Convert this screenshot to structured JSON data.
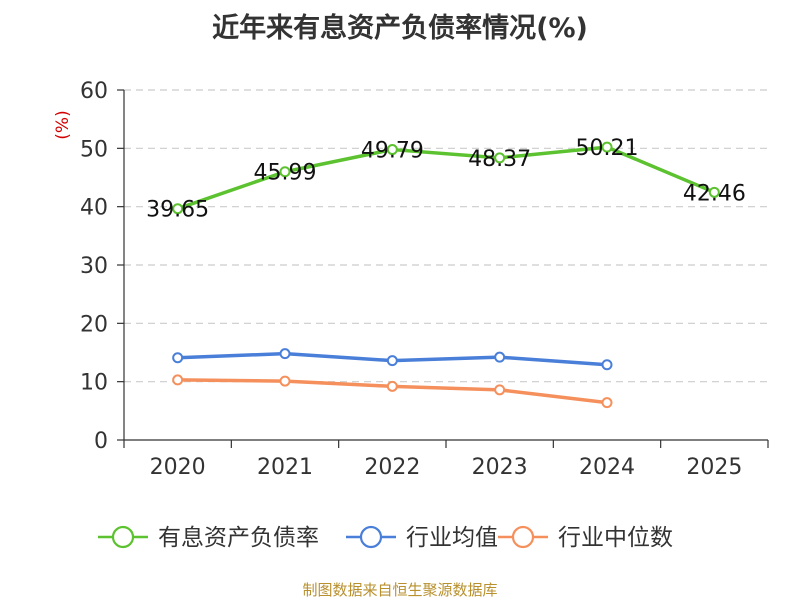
{
  "chart_data": {
    "type": "line",
    "title": "近年来有息资产负债率情况(%)",
    "y_unit": "(%)",
    "categories": [
      "2020",
      "2021",
      "2022",
      "2023",
      "2024",
      "2025"
    ],
    "ylim": [
      0,
      60
    ],
    "yticks": [
      "0",
      "10",
      "20",
      "30",
      "40",
      "50",
      "60"
    ],
    "grid": true,
    "legend_position": "bottom",
    "series": [
      {
        "name": "有息资产负债率",
        "color": "#5cc22f",
        "values": [
          39.65,
          45.99,
          49.79,
          48.37,
          50.21,
          42.46
        ],
        "labels": [
          "39.65",
          "45.99",
          "49.79",
          "48.37",
          "50.21",
          "42.46"
        ]
      },
      {
        "name": "行业均值",
        "color": "#4a7fd9",
        "values": [
          14.1,
          14.8,
          13.6,
          14.2,
          12.9,
          null
        ]
      },
      {
        "name": "行业中位数",
        "color": "#f5905c",
        "values": [
          10.3,
          10.1,
          9.2,
          8.6,
          6.4,
          null
        ]
      }
    ]
  },
  "footer": {
    "source": "制图数据来自恒生聚源数据库"
  }
}
